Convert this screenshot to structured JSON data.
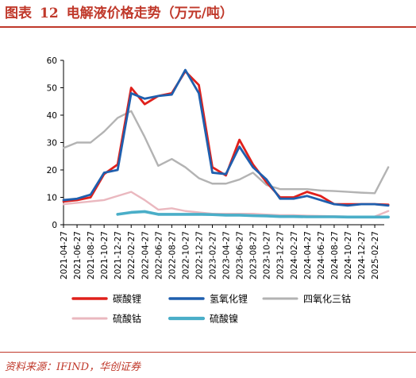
{
  "figure": {
    "label": "图表",
    "number": "12",
    "title": "电解液价格走势（万元/吨）"
  },
  "source_text": "资料来源：IFIND，华创证券",
  "chart_data": {
    "type": "line",
    "title": "",
    "xlabel": "",
    "ylabel": "",
    "ylim": [
      0,
      60
    ],
    "y_ticks": [
      0,
      10,
      20,
      30,
      40,
      50,
      60
    ],
    "grid": false,
    "legend_position": "bottom",
    "x_tick_labels": [
      "2021-04-27",
      "2021-06-27",
      "2021-08-27",
      "2021-10-27",
      "2021-12-27",
      "2022-02-27",
      "2022-04-27",
      "2022-06-27",
      "2022-08-27",
      "2022-10-27",
      "2022-12-27",
      "2023-02-27",
      "2023-04-27",
      "2023-06-27",
      "2023-08-27",
      "2023-10-27",
      "2023-12-27",
      "2024-02-27",
      "2024-04-27",
      "2024-06-27",
      "2024-08-27",
      "2024-10-27",
      "2024-12-27",
      "2025-02-27"
    ],
    "x": [
      "2021-04-27",
      "2021-06-27",
      "2021-08-27",
      "2021-10-27",
      "2021-12-27",
      "2022-02-27",
      "2022-04-27",
      "2022-06-27",
      "2022-08-27",
      "2022-10-27",
      "2022-12-27",
      "2023-02-27",
      "2023-04-27",
      "2023-06-27",
      "2023-08-27",
      "2023-10-27",
      "2023-12-27",
      "2024-02-27",
      "2024-04-27",
      "2024-06-27",
      "2024-08-27",
      "2024-10-27",
      "2024-12-27",
      "2025-02-27",
      "2025-03-27"
    ],
    "series": [
      {
        "name": "碳酸锂",
        "color": "#e0201b",
        "values": [
          8.5,
          9,
          10,
          18.5,
          22,
          50,
          44,
          47,
          48,
          56,
          51,
          21,
          18,
          31,
          22,
          15.5,
          10,
          10,
          12,
          10.5,
          7.5,
          7.5,
          7.5,
          7.5,
          7.3
        ]
      },
      {
        "name": "氢氧化锂",
        "color": "#1f5fae",
        "values": [
          9,
          9.5,
          11,
          19,
          20,
          48,
          46,
          47,
          47.5,
          56.5,
          48,
          19,
          18.5,
          28.5,
          21,
          16.5,
          9.5,
          9.5,
          10.5,
          9,
          7.5,
          7,
          7.5,
          7.5,
          7
        ]
      },
      {
        "name": "四氧化三钴",
        "color": "#b3b3b3",
        "values": [
          28,
          30,
          30,
          34,
          39,
          41.5,
          32,
          21.5,
          24,
          21,
          17,
          15,
          15,
          16.5,
          19,
          14.5,
          13,
          13,
          13,
          12.5,
          12.3,
          12,
          11.7,
          11.5,
          21
        ]
      },
      {
        "name": "硫酸钴",
        "color": "#eab8bf",
        "values": [
          7.5,
          8,
          8.5,
          9,
          10.5,
          12,
          9,
          5.5,
          6,
          5,
          4.5,
          4,
          4,
          4,
          4,
          3.7,
          3.5,
          3.5,
          3.3,
          3.2,
          3.1,
          3,
          3,
          3,
          5
        ]
      },
      {
        "name": "硫酸镍",
        "color": "#4aaec8",
        "values": [
          null,
          null,
          null,
          null,
          3.8,
          4.5,
          4.8,
          3.8,
          3.8,
          3.8,
          3.8,
          3.7,
          3.5,
          3.5,
          3.3,
          3.2,
          3,
          3,
          2.9,
          2.9,
          2.9,
          2.8,
          2.8,
          2.8,
          2.8
        ]
      }
    ]
  },
  "colors": {
    "title_red": "#c0392b",
    "axis": "#000000"
  }
}
